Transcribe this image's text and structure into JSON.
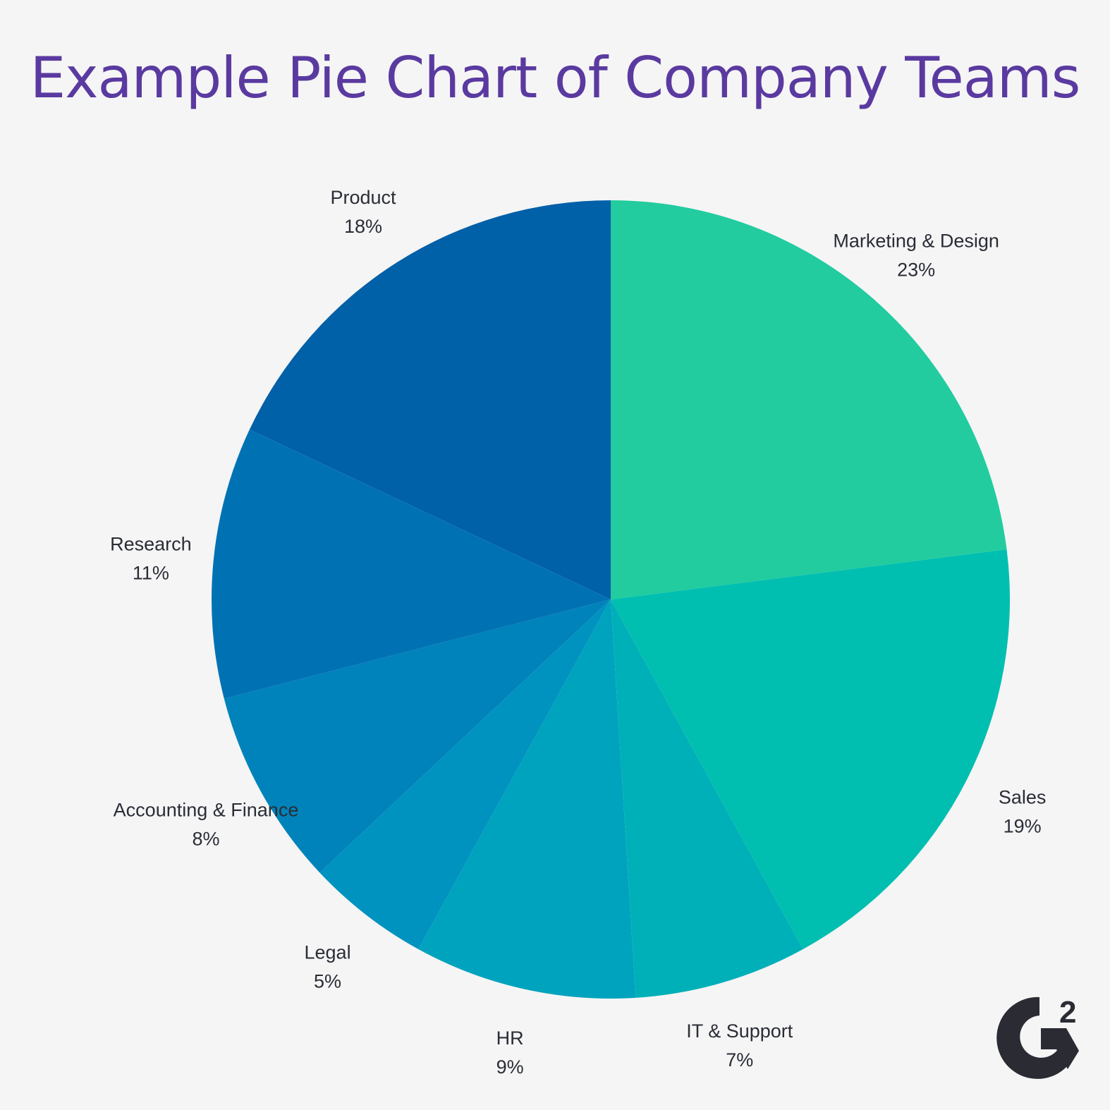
{
  "chart_data": {
    "type": "pie",
    "title": "Example Pie Chart of Company Teams",
    "start_angle_deg": 0,
    "direction": "clockwise",
    "slices": [
      {
        "label": "Marketing & Design",
        "value": 23,
        "display": "23%",
        "color": "#22cc9f"
      },
      {
        "label": "Sales",
        "value": 19,
        "display": "19%",
        "color": "#00bfb0"
      },
      {
        "label": "IT & Support",
        "value": 7,
        "display": "7%",
        "color": "#00b0b8"
      },
      {
        "label": "HR",
        "value": 9,
        "display": "9%",
        "color": "#00a3bd"
      },
      {
        "label": "Legal",
        "value": 5,
        "display": "5%",
        "color": "#0093bf"
      },
      {
        "label": "Accounting & Finance",
        "value": 8,
        "display": "8%",
        "color": "#0083ba"
      },
      {
        "label": "Research",
        "value": 11,
        "display": "11%",
        "color": "#0072b4"
      },
      {
        "label": "Product",
        "value": 18,
        "display": "18%",
        "color": "#0060a8"
      }
    ]
  },
  "logo": {
    "name": "g2-logo",
    "text": "G",
    "superscript": "2",
    "color": "#2a2b33"
  },
  "colors": {
    "background": "#f5f5f5",
    "title": "#5a3aa0",
    "label": "#2a2d36"
  }
}
